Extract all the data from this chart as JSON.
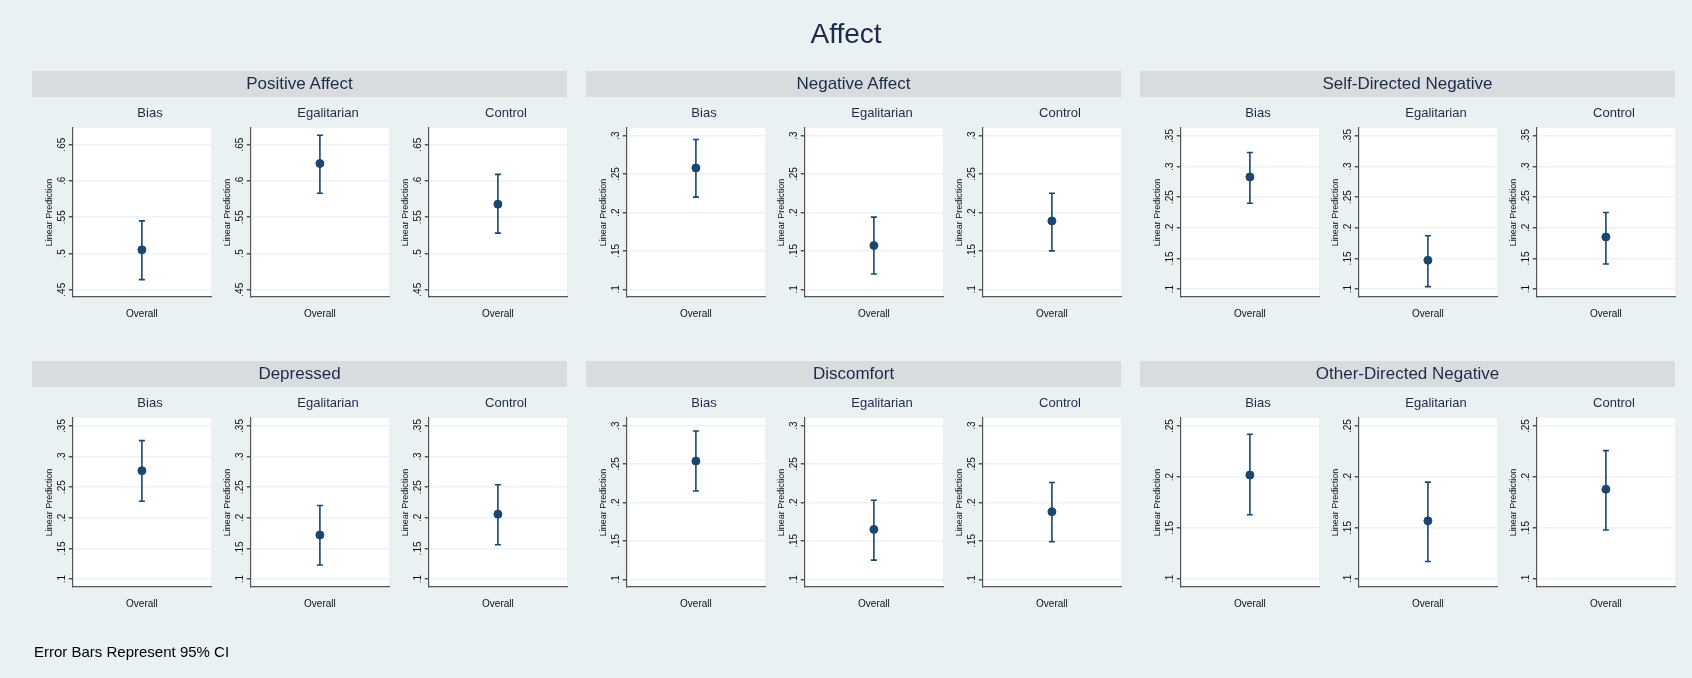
{
  "chart_data": [
    {
      "type": "other",
      "title": "Affect",
      "annotations": [
        "Positive Affect",
        "Negative Affect",
        "Self-Directed Negative",
        "Depressed",
        "Discomfort",
        "Other-Directed Negative",
        "Error Bars Represent 95% CI"
      ]
    },
    {
      "type": "scatter",
      "title": "Bias",
      "ylabel": "Linear Prediction",
      "categories": [
        "Overall"
      ],
      "series": [
        {
          "color": "#1a476f",
          "values": [
            0.505
          ],
          "errors": [
            [
              0.464,
              0.545
            ]
          ]
        }
      ],
      "ylim": [
        0.44,
        0.673
      ],
      "yticks": [
        {
          "value": 0.45,
          "label": ".45"
        },
        {
          "value": 0.5,
          "label": ".5"
        },
        {
          "value": 0.55,
          "label": ".55"
        },
        {
          "value": 0.6,
          "label": ".6"
        },
        {
          "value": 0.65,
          "label": ".65"
        }
      ],
      "grid": "y",
      "marker": "circle"
    },
    {
      "type": "scatter",
      "title": "Egalitarian",
      "ylabel": "Linear Prediction",
      "categories": [
        "Overall"
      ],
      "series": [
        {
          "color": "#1a476f",
          "values": [
            0.624
          ],
          "errors": [
            [
              0.583,
              0.663
            ]
          ]
        }
      ],
      "ylim": [
        0.44,
        0.673
      ],
      "yticks": [
        {
          "value": 0.45,
          "label": ".45"
        },
        {
          "value": 0.5,
          "label": ".5"
        },
        {
          "value": 0.55,
          "label": ".55"
        },
        {
          "value": 0.6,
          "label": ".6"
        },
        {
          "value": 0.65,
          "label": ".65"
        }
      ],
      "grid": "y",
      "marker": "circle"
    },
    {
      "type": "scatter",
      "title": "Control",
      "ylabel": "Linear Prediction",
      "categories": [
        "Overall"
      ],
      "series": [
        {
          "color": "#1a476f",
          "values": [
            0.568
          ],
          "errors": [
            [
              0.528,
              0.609
            ]
          ]
        }
      ],
      "ylim": [
        0.44,
        0.673
      ],
      "yticks": [
        {
          "value": 0.45,
          "label": ".45"
        },
        {
          "value": 0.5,
          "label": ".5"
        },
        {
          "value": 0.55,
          "label": ".55"
        },
        {
          "value": 0.6,
          "label": ".6"
        },
        {
          "value": 0.65,
          "label": ".65"
        }
      ],
      "grid": "y",
      "marker": "circle"
    },
    {
      "type": "scatter",
      "title": "Bias",
      "ylabel": "Linear Prediction",
      "categories": [
        "Overall"
      ],
      "series": [
        {
          "color": "#1a476f",
          "values": [
            0.258
          ],
          "errors": [
            [
              0.22,
              0.295
            ]
          ]
        }
      ],
      "ylim": [
        0.09,
        0.31
      ],
      "yticks": [
        {
          "value": 0.1,
          "label": ".1"
        },
        {
          "value": 0.15,
          "label": ".15"
        },
        {
          "value": 0.2,
          "label": ".2"
        },
        {
          "value": 0.25,
          "label": ".25"
        },
        {
          "value": 0.3,
          "label": ".3"
        }
      ],
      "grid": "y",
      "marker": "circle"
    },
    {
      "type": "scatter",
      "title": "Egalitarian",
      "ylabel": "Linear Prediction",
      "categories": [
        "Overall"
      ],
      "series": [
        {
          "color": "#1a476f",
          "values": [
            0.157
          ],
          "errors": [
            [
              0.12,
              0.194
            ]
          ]
        }
      ],
      "ylim": [
        0.09,
        0.31
      ],
      "yticks": [
        {
          "value": 0.1,
          "label": ".1"
        },
        {
          "value": 0.15,
          "label": ".15"
        },
        {
          "value": 0.2,
          "label": ".2"
        },
        {
          "value": 0.25,
          "label": ".25"
        },
        {
          "value": 0.3,
          "label": ".3"
        }
      ],
      "grid": "y",
      "marker": "circle"
    },
    {
      "type": "scatter",
      "title": "Control",
      "ylabel": "Linear Prediction",
      "categories": [
        "Overall"
      ],
      "series": [
        {
          "color": "#1a476f",
          "values": [
            0.189
          ],
          "errors": [
            [
              0.15,
              0.225
            ]
          ]
        }
      ],
      "ylim": [
        0.09,
        0.31
      ],
      "yticks": [
        {
          "value": 0.1,
          "label": ".1"
        },
        {
          "value": 0.15,
          "label": ".15"
        },
        {
          "value": 0.2,
          "label": ".2"
        },
        {
          "value": 0.25,
          "label": ".25"
        },
        {
          "value": 0.3,
          "label": ".3"
        }
      ],
      "grid": "y",
      "marker": "circle"
    },
    {
      "type": "scatter",
      "title": "Bias",
      "ylabel": "Linear Prediction",
      "categories": [
        "Overall"
      ],
      "series": [
        {
          "color": "#1a476f",
          "values": [
            0.283
          ],
          "errors": [
            [
              0.24,
              0.323
            ]
          ]
        }
      ],
      "ylim": [
        0.087,
        0.363
      ],
      "yticks": [
        {
          "value": 0.1,
          "label": ".1"
        },
        {
          "value": 0.15,
          "label": ".15"
        },
        {
          "value": 0.2,
          "label": ".2"
        },
        {
          "value": 0.25,
          "label": ".25"
        },
        {
          "value": 0.3,
          "label": ".3"
        },
        {
          "value": 0.35,
          "label": ".35"
        }
      ],
      "grid": "y",
      "marker": "circle"
    },
    {
      "type": "scatter",
      "title": "Egalitarian",
      "ylabel": "Linear Prediction",
      "categories": [
        "Overall"
      ],
      "series": [
        {
          "color": "#1a476f",
          "values": [
            0.147
          ],
          "errors": [
            [
              0.104,
              0.187
            ]
          ]
        }
      ],
      "ylim": [
        0.087,
        0.363
      ],
      "yticks": [
        {
          "value": 0.1,
          "label": ".1"
        },
        {
          "value": 0.15,
          "label": ".15"
        },
        {
          "value": 0.2,
          "label": ".2"
        },
        {
          "value": 0.25,
          "label": ".25"
        },
        {
          "value": 0.3,
          "label": ".3"
        },
        {
          "value": 0.35,
          "label": ".35"
        }
      ],
      "grid": "y",
      "marker": "circle"
    },
    {
      "type": "scatter",
      "title": "Control",
      "ylabel": "Linear Prediction",
      "categories": [
        "Overall"
      ],
      "series": [
        {
          "color": "#1a476f",
          "values": [
            0.185
          ],
          "errors": [
            [
              0.141,
              0.225
            ]
          ]
        }
      ],
      "ylim": [
        0.087,
        0.363
      ],
      "yticks": [
        {
          "value": 0.1,
          "label": ".1"
        },
        {
          "value": 0.15,
          "label": ".15"
        },
        {
          "value": 0.2,
          "label": ".2"
        },
        {
          "value": 0.25,
          "label": ".25"
        },
        {
          "value": 0.3,
          "label": ".3"
        },
        {
          "value": 0.35,
          "label": ".35"
        }
      ],
      "grid": "y",
      "marker": "circle"
    },
    {
      "type": "scatter",
      "title": "Bias",
      "ylabel": "Linear Prediction",
      "categories": [
        "Overall"
      ],
      "series": [
        {
          "color": "#1a476f",
          "values": [
            0.277
          ],
          "errors": [
            [
              0.227,
              0.326
            ]
          ]
        }
      ],
      "ylim": [
        0.087,
        0.363
      ],
      "yticks": [
        {
          "value": 0.1,
          "label": ".1"
        },
        {
          "value": 0.15,
          "label": ".15"
        },
        {
          "value": 0.2,
          "label": ".2"
        },
        {
          "value": 0.25,
          "label": ".25"
        },
        {
          "value": 0.3,
          "label": ".3"
        },
        {
          "value": 0.35,
          "label": ".35"
        }
      ],
      "grid": "y",
      "marker": "circle"
    },
    {
      "type": "scatter",
      "title": "Egalitarian",
      "ylabel": "Linear Prediction",
      "categories": [
        "Overall"
      ],
      "series": [
        {
          "color": "#1a476f",
          "values": [
            0.172
          ],
          "errors": [
            [
              0.123,
              0.22
            ]
          ]
        }
      ],
      "ylim": [
        0.087,
        0.363
      ],
      "yticks": [
        {
          "value": 0.1,
          "label": ".1"
        },
        {
          "value": 0.15,
          "label": ".15"
        },
        {
          "value": 0.2,
          "label": ".2"
        },
        {
          "value": 0.25,
          "label": ".25"
        },
        {
          "value": 0.3,
          "label": ".3"
        },
        {
          "value": 0.35,
          "label": ".35"
        }
      ],
      "grid": "y",
      "marker": "circle"
    },
    {
      "type": "scatter",
      "title": "Control",
      "ylabel": "Linear Prediction",
      "categories": [
        "Overall"
      ],
      "series": [
        {
          "color": "#1a476f",
          "values": [
            0.206
          ],
          "errors": [
            [
              0.156,
              0.254
            ]
          ]
        }
      ],
      "ylim": [
        0.087,
        0.363
      ],
      "yticks": [
        {
          "value": 0.1,
          "label": ".1"
        },
        {
          "value": 0.15,
          "label": ".15"
        },
        {
          "value": 0.2,
          "label": ".2"
        },
        {
          "value": 0.25,
          "label": ".25"
        },
        {
          "value": 0.3,
          "label": ".3"
        },
        {
          "value": 0.35,
          "label": ".35"
        }
      ],
      "grid": "y",
      "marker": "circle"
    },
    {
      "type": "scatter",
      "title": "Bias",
      "ylabel": "Linear Prediction",
      "categories": [
        "Overall"
      ],
      "series": [
        {
          "color": "#1a476f",
          "values": [
            0.254
          ],
          "errors": [
            [
              0.215,
              0.293
            ]
          ]
        }
      ],
      "ylim": [
        0.09,
        0.31
      ],
      "yticks": [
        {
          "value": 0.1,
          "label": ".1"
        },
        {
          "value": 0.15,
          "label": ".15"
        },
        {
          "value": 0.2,
          "label": ".2"
        },
        {
          "value": 0.25,
          "label": ".25"
        },
        {
          "value": 0.3,
          "label": ".3"
        }
      ],
      "grid": "y",
      "marker": "circle"
    },
    {
      "type": "scatter",
      "title": "Egalitarian",
      "ylabel": "Linear Prediction",
      "categories": [
        "Overall"
      ],
      "series": [
        {
          "color": "#1a476f",
          "values": [
            0.165
          ],
          "errors": [
            [
              0.125,
              0.203
            ]
          ]
        }
      ],
      "ylim": [
        0.09,
        0.31
      ],
      "yticks": [
        {
          "value": 0.1,
          "label": ".1"
        },
        {
          "value": 0.15,
          "label": ".15"
        },
        {
          "value": 0.2,
          "label": ".2"
        },
        {
          "value": 0.25,
          "label": ".25"
        },
        {
          "value": 0.3,
          "label": ".3"
        }
      ],
      "grid": "y",
      "marker": "circle"
    },
    {
      "type": "scatter",
      "title": "Control",
      "ylabel": "Linear Prediction",
      "categories": [
        "Overall"
      ],
      "series": [
        {
          "color": "#1a476f",
          "values": [
            0.188
          ],
          "errors": [
            [
              0.149,
              0.226
            ]
          ]
        }
      ],
      "ylim": [
        0.09,
        0.31
      ],
      "yticks": [
        {
          "value": 0.1,
          "label": ".1"
        },
        {
          "value": 0.15,
          "label": ".15"
        },
        {
          "value": 0.2,
          "label": ".2"
        },
        {
          "value": 0.25,
          "label": ".25"
        },
        {
          "value": 0.3,
          "label": ".3"
        }
      ],
      "grid": "y",
      "marker": "circle"
    },
    {
      "type": "scatter",
      "title": "Bias",
      "ylabel": "Linear Prediction",
      "categories": [
        "Overall"
      ],
      "series": [
        {
          "color": "#1a476f",
          "values": [
            0.202
          ],
          "errors": [
            [
              0.163,
              0.242
            ]
          ]
        }
      ],
      "ylim": [
        0.092,
        0.258
      ],
      "yticks": [
        {
          "value": 0.1,
          "label": ".1"
        },
        {
          "value": 0.15,
          "label": ".15"
        },
        {
          "value": 0.2,
          "label": ".2"
        },
        {
          "value": 0.25,
          "label": ".25"
        }
      ],
      "grid": "y",
      "marker": "circle"
    },
    {
      "type": "scatter",
      "title": "Egalitarian",
      "ylabel": "Linear Prediction",
      "categories": [
        "Overall"
      ],
      "series": [
        {
          "color": "#1a476f",
          "values": [
            0.157
          ],
          "errors": [
            [
              0.117,
              0.195
            ]
          ]
        }
      ],
      "ylim": [
        0.092,
        0.258
      ],
      "yticks": [
        {
          "value": 0.1,
          "label": ".1"
        },
        {
          "value": 0.15,
          "label": ".15"
        },
        {
          "value": 0.2,
          "label": ".2"
        },
        {
          "value": 0.25,
          "label": ".25"
        }
      ],
      "grid": "y",
      "marker": "circle"
    },
    {
      "type": "scatter",
      "title": "Control",
      "ylabel": "Linear Prediction",
      "categories": [
        "Overall"
      ],
      "series": [
        {
          "color": "#1a476f",
          "values": [
            0.188
          ],
          "errors": [
            [
              0.148,
              0.226
            ]
          ]
        }
      ],
      "ylim": [
        0.092,
        0.258
      ],
      "yticks": [
        {
          "value": 0.1,
          "label": ".1"
        },
        {
          "value": 0.15,
          "label": ".15"
        },
        {
          "value": 0.2,
          "label": ".2"
        },
        {
          "value": 0.25,
          "label": ".25"
        }
      ],
      "grid": "y",
      "marker": "circle"
    }
  ]
}
